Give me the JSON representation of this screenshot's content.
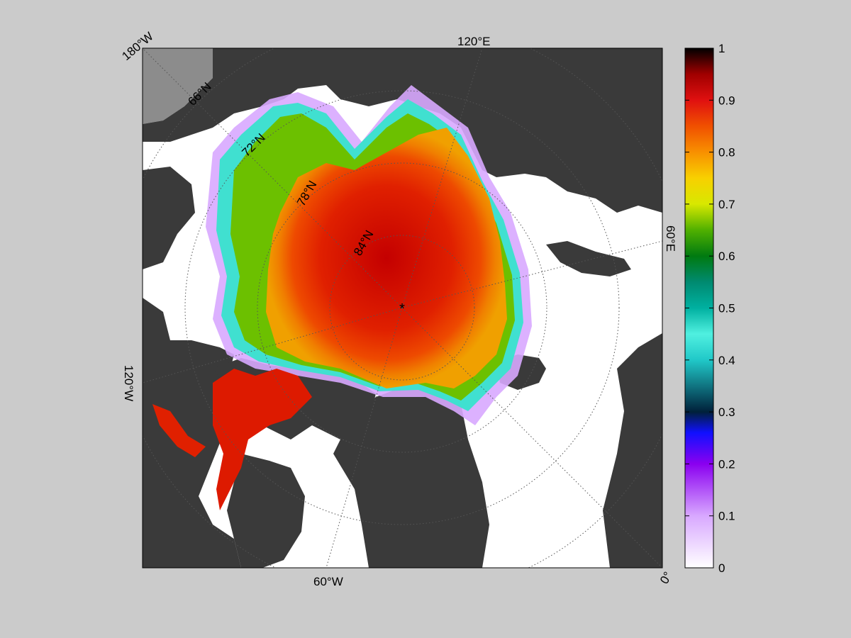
{
  "map": {
    "projection": "north-polar-stereographic",
    "lon_labels": [
      {
        "text": "180°W",
        "angle": -40
      },
      {
        "text": "120°E",
        "angle": 0
      },
      {
        "text": "60°E",
        "angle": 90
      },
      {
        "text": "0°",
        "angle": -60
      },
      {
        "text": "60°W",
        "angle": 0
      },
      {
        "text": "120°W",
        "angle": 90
      }
    ],
    "lat_labels": [
      {
        "text": "66°N"
      },
      {
        "text": "72°N"
      },
      {
        "text": "78°N"
      },
      {
        "text": "84°N"
      }
    ],
    "pole_marker": "*",
    "colors": {
      "background": "#cbcbcb",
      "land": "#3a3a3a",
      "open_water": "#ffffff",
      "missing": "#8c8c8c"
    }
  },
  "colorbar": {
    "min": 0,
    "max": 1,
    "ticks": [
      "0",
      "0.1",
      "0.2",
      "0.3",
      "0.4",
      "0.5",
      "0.6",
      "0.7",
      "0.8",
      "0.9",
      "1"
    ],
    "colormap": [
      [
        0.0,
        "#ffffff"
      ],
      [
        0.1,
        "#d8a8ff"
      ],
      [
        0.2,
        "#8a00f0"
      ],
      [
        0.26,
        "#1010ff"
      ],
      [
        0.3,
        "#00203a"
      ],
      [
        0.4,
        "#20c8c8"
      ],
      [
        0.45,
        "#50f0e0"
      ],
      [
        0.5,
        "#00b0a0"
      ],
      [
        0.55,
        "#008a70"
      ],
      [
        0.6,
        "#007a10"
      ],
      [
        0.65,
        "#50b000"
      ],
      [
        0.7,
        "#d8e800"
      ],
      [
        0.75,
        "#f8d000"
      ],
      [
        0.8,
        "#f89000"
      ],
      [
        0.85,
        "#f05000"
      ],
      [
        0.9,
        "#e01010"
      ],
      [
        0.95,
        "#a00000"
      ],
      [
        1.0,
        "#000000"
      ]
    ]
  }
}
